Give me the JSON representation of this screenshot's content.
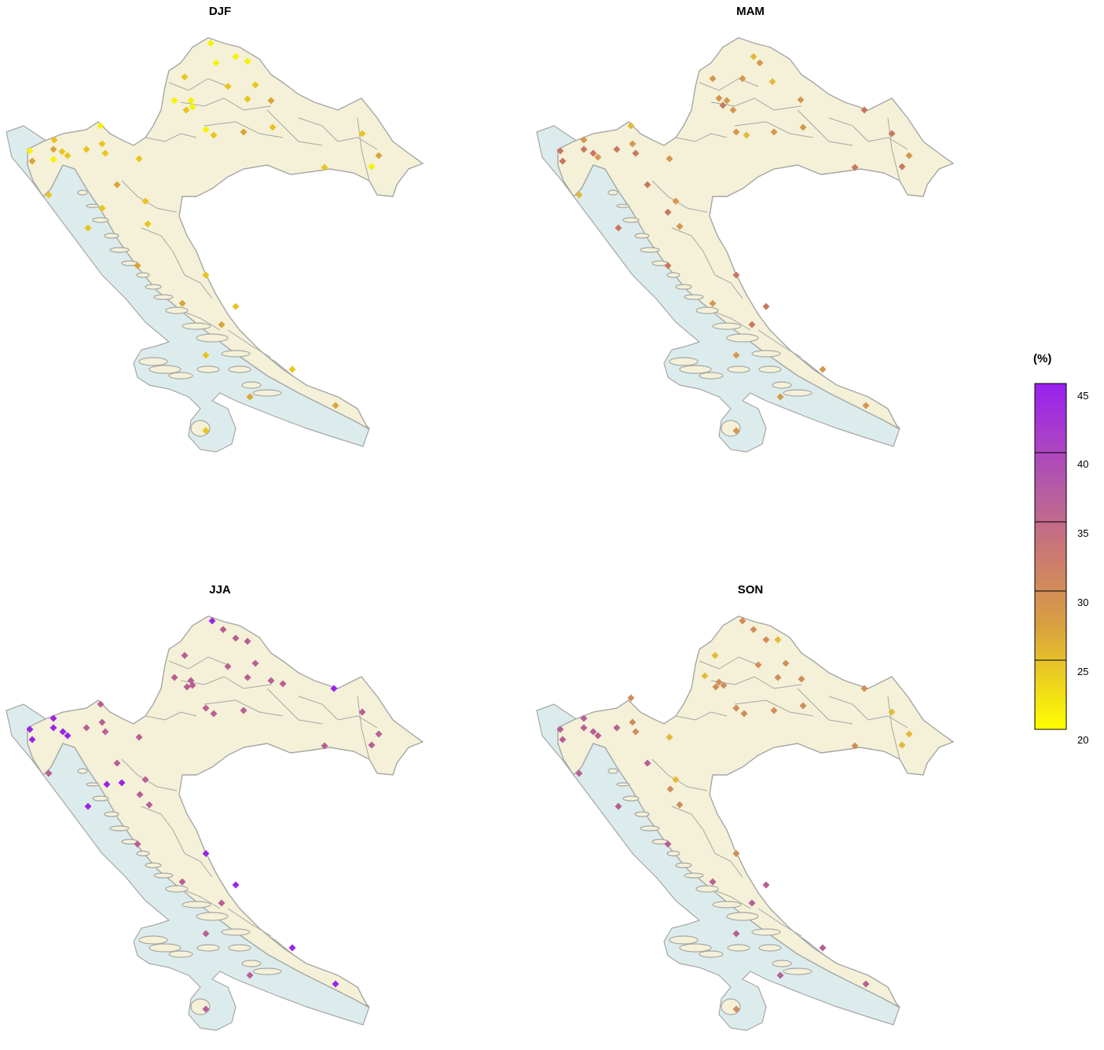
{
  "panels": [
    {
      "title": "DJF",
      "marker_color_stops": [
        "#f6f200",
        "#e9c41d",
        "#d9a43a"
      ]
    },
    {
      "title": "MAM",
      "marker_color_stops": [
        "#e2b93a",
        "#d4974f",
        "#c8775f"
      ]
    },
    {
      "title": "JJA",
      "marker_color_stops": [
        "#c8775f",
        "#b85f93",
        "#9a25e6"
      ]
    },
    {
      "title": "SON",
      "marker_color_stops": [
        "#e2b93a",
        "#d08d5a",
        "#b85f93"
      ]
    }
  ],
  "legend": {
    "title": "(%)",
    "ticks": [
      "45",
      "40",
      "35",
      "30",
      "25",
      "20"
    ],
    "colors": {
      "top": "#9b20f0",
      "mid_upper": "#b65aa6",
      "mid": "#cc7a70",
      "mid_lower": "#d8a040",
      "bottom": "#ffff00"
    }
  },
  "colors": {
    "land": "#f4f1d8",
    "sea": "#dcecec",
    "border": "#a6a6a6"
  }
}
